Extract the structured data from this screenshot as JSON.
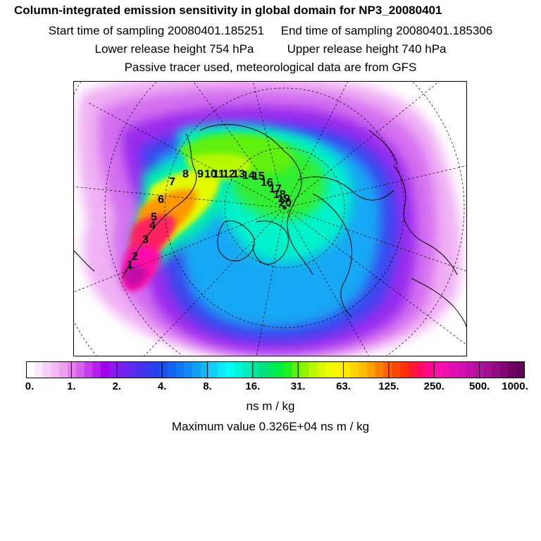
{
  "header": {
    "title": "Column-integrated emission sensitivity in global domain for NP3_20080401",
    "start_time": "Start time of sampling 20080401.185251",
    "end_time": "End time of sampling 20080401.185306",
    "lower_release": "Lower release height  754 hPa",
    "upper_release": "Upper release height  740 hPa",
    "tracer_note": "Passive tracer used, meteorological data are from GFS"
  },
  "map": {
    "trajectory_labels": [
      "1",
      "2",
      "3",
      "4",
      "5",
      "6",
      "7",
      "8",
      "9",
      "10",
      "11",
      "12",
      "13",
      "14",
      "15",
      "16",
      "17",
      "18",
      "19",
      "20"
    ]
  },
  "colorbar": {
    "tick_labels": [
      "0.",
      "1.",
      "2.",
      "4.",
      "8.",
      "16.",
      "31.",
      "63.",
      "125.",
      "250.",
      "500.",
      "1000."
    ],
    "colors": [
      "#ffffff",
      "#fbe8fb",
      "#f7d0f7",
      "#f3b8f3",
      "#eea0f0",
      "#e680ef",
      "#d860ef",
      "#c83cef",
      "#b41eef",
      "#a000ee",
      "#8c1cee",
      "#7820ee",
      "#6428ee",
      "#5030ee",
      "#3c38ee",
      "#2840ee",
      "#1a50f0",
      "#1464f0",
      "#1278f2",
      "#108cf4",
      "#10a0f4",
      "#10b8f6",
      "#10d0f8",
      "#10e8f8",
      "#00fff4",
      "#00f6dc",
      "#00eec0",
      "#00e8a0",
      "#00e080",
      "#00e860",
      "#00f040",
      "#20f020",
      "#60f010",
      "#90f400",
      "#b8f800",
      "#d8fa00",
      "#eefc00",
      "#fcf400",
      "#ffe800",
      "#ffd400",
      "#ffbc00",
      "#ffa000",
      "#ff8000",
      "#ff6400",
      "#ff4800",
      "#ff3000",
      "#ff1830",
      "#ff0a60",
      "#ff0a88",
      "#ff10a8",
      "#f010b0",
      "#e010b0",
      "#d010b0",
      "#c010a8",
      "#b0109c",
      "#a01090",
      "#900c80",
      "#800870",
      "#700464",
      "#600058"
    ],
    "unit": "ns m / kg",
    "max_value": "Maximum value  0.326E+04 ns m / kg"
  }
}
